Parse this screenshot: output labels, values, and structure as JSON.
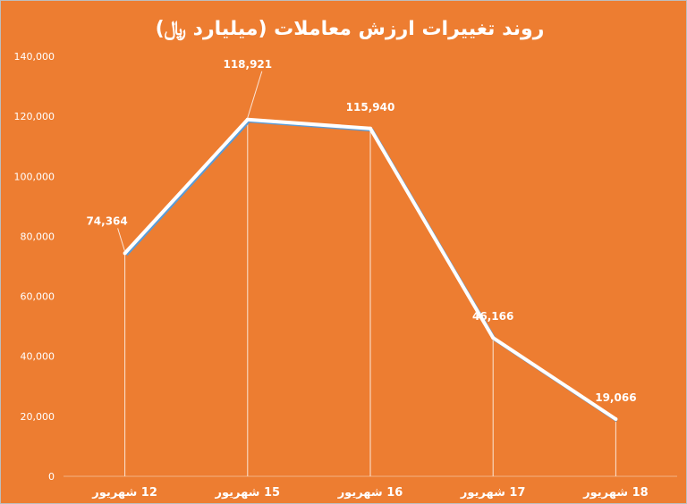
{
  "chart_data": {
    "type": "line",
    "title": "روند تغییرات ارزش معاملات (میلیارد ﷼)",
    "xlabel": "",
    "ylabel": "",
    "categories": [
      "12 شهریور",
      "15 شهریور",
      "16 شهریور",
      "17 شهریور",
      "18 شهریور"
    ],
    "series": [
      {
        "values": [
          74364,
          118921,
          115940,
          46166,
          19066
        ]
      }
    ],
    "data_labels": [
      "74,364",
      "118,921",
      "115,940",
      "46,166",
      "19,066"
    ],
    "ylim": [
      0,
      140000
    ],
    "yticks": [
      0,
      20000,
      40000,
      60000,
      80000,
      100000,
      120000,
      140000
    ],
    "ytick_labels": [
      "0",
      "20,000",
      "40,000",
      "60,000",
      "80,000",
      "100,000",
      "120,000",
      "140,000"
    ],
    "grid": false,
    "drop_lines": true,
    "legend": "none"
  },
  "colors": {
    "background": "#ED7D31",
    "line": "#FFFFFF",
    "line_shadow": "#5B9BD5",
    "text": "#FFFFFF",
    "title": "#FFFFFF",
    "axis": "#F4B183"
  }
}
